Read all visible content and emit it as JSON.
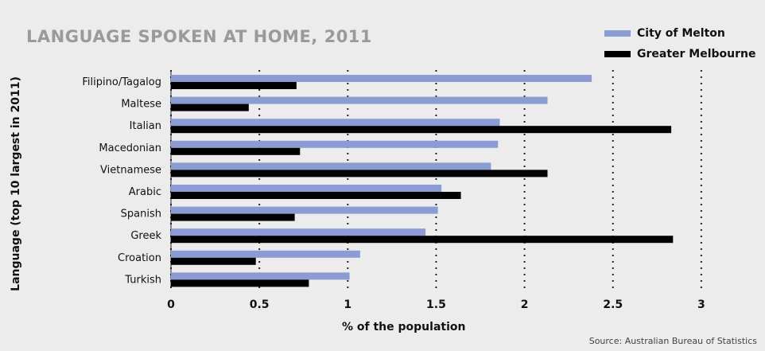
{
  "chart_data": {
    "type": "bar",
    "orientation": "horizontal",
    "title": "LANGUAGE SPOKEN AT HOME, 2011",
    "xlabel": "% of the population",
    "ylabel": "Language (top 10 largest in 2011)",
    "source": "Source: Australian Bureau of Statistics",
    "categories": [
      "Filipino/Tagalog",
      "Maltese",
      "Italian",
      "Macedonian",
      "Vietnamese",
      "Arabic",
      "Spanish",
      "Greek",
      "Croation",
      "Turkish"
    ],
    "series": [
      {
        "name": "City of Melton",
        "color": "#8b9bd3",
        "values": [
          2.38,
          2.13,
          1.86,
          1.85,
          1.81,
          1.53,
          1.51,
          1.44,
          1.07,
          1.01
        ]
      },
      {
        "name": "Greater Melbourne",
        "color": "#000000",
        "values": [
          0.71,
          0.44,
          2.83,
          0.73,
          2.13,
          1.64,
          0.7,
          2.84,
          0.48,
          0.78
        ]
      }
    ],
    "xticks": [
      "0",
      "0.5",
      "1",
      "1.5",
      "2",
      "2.5",
      "3"
    ],
    "xlim": [
      0,
      3
    ],
    "grid": true,
    "legend_position": "top-right"
  }
}
